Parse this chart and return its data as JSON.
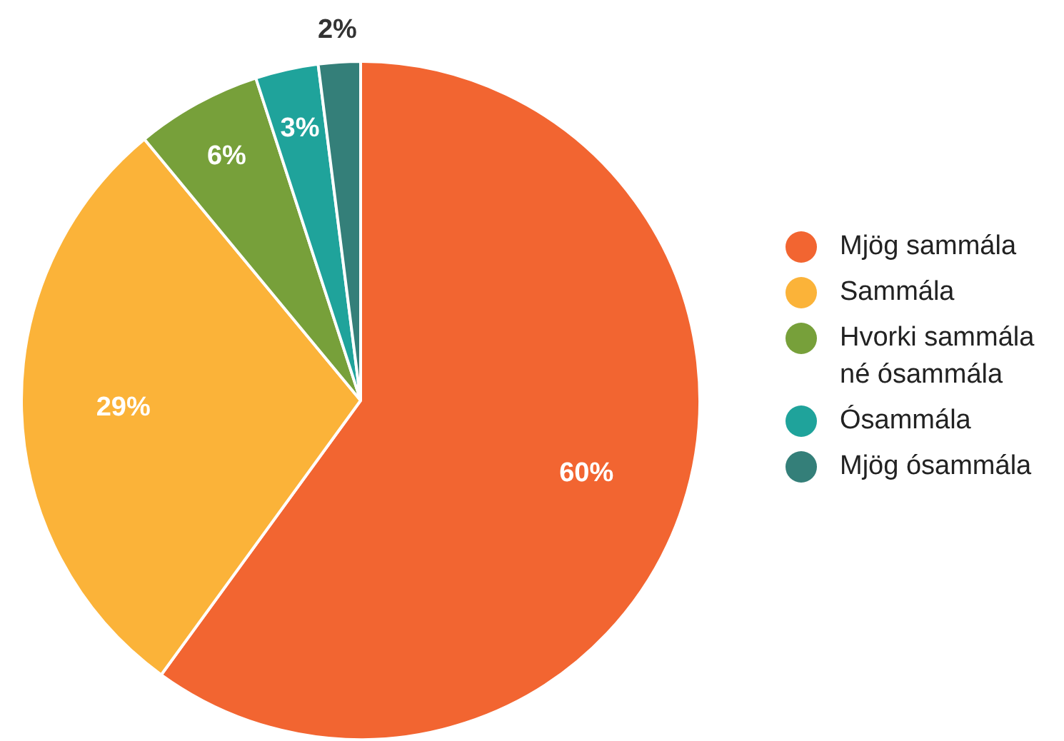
{
  "chart_data": {
    "type": "pie",
    "categories": [
      "Mjög sammála",
      "Sammála",
      "Hvorki sammála né ósammála",
      "Ósammála",
      "Mjög ósammála"
    ],
    "values": [
      60,
      29,
      6,
      3,
      2
    ],
    "value_labels": [
      "60%",
      "29%",
      "6%",
      "3%",
      "2%"
    ],
    "colors": [
      "#f26531",
      "#fbb339",
      "#77a03a",
      "#1fa39b",
      "#347f79"
    ],
    "legend": "right"
  }
}
